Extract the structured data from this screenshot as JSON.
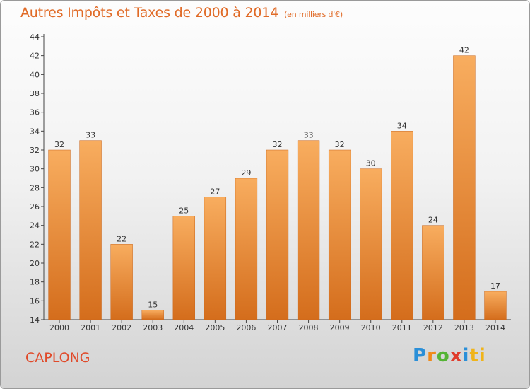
{
  "header": {
    "title": "Autres Impôts et Taxes de 2000 à 2014",
    "unit": "(en milliers d'€)"
  },
  "footer": {
    "location": "CAPLONG",
    "logo_letters": [
      "P",
      "r",
      "o",
      "x",
      "i",
      "ti"
    ]
  },
  "colors": {
    "title": "#e06a26",
    "bar_light": "#f7a95a",
    "bar_dark": "#d8711f",
    "location": "#e04a2a"
  },
  "chart_data": {
    "type": "bar",
    "title": "Autres Impôts et Taxes de 2000 à 2014",
    "subtitle": "(en milliers d'€)",
    "xlabel": "",
    "ylabel": "",
    "categories": [
      "2000",
      "2001",
      "2002",
      "2003",
      "2004",
      "2005",
      "2006",
      "2007",
      "2008",
      "2009",
      "2010",
      "2011",
      "2012",
      "2013",
      "2014"
    ],
    "values": [
      32,
      33,
      22,
      15,
      25,
      27,
      29,
      32,
      33,
      32,
      30,
      34,
      24,
      42,
      17
    ],
    "ylim": [
      14,
      44
    ],
    "yticks": [
      14,
      16,
      18,
      20,
      22,
      24,
      26,
      28,
      30,
      32,
      34,
      36,
      38,
      40,
      42,
      44
    ],
    "grid": false,
    "data_labels": true
  }
}
